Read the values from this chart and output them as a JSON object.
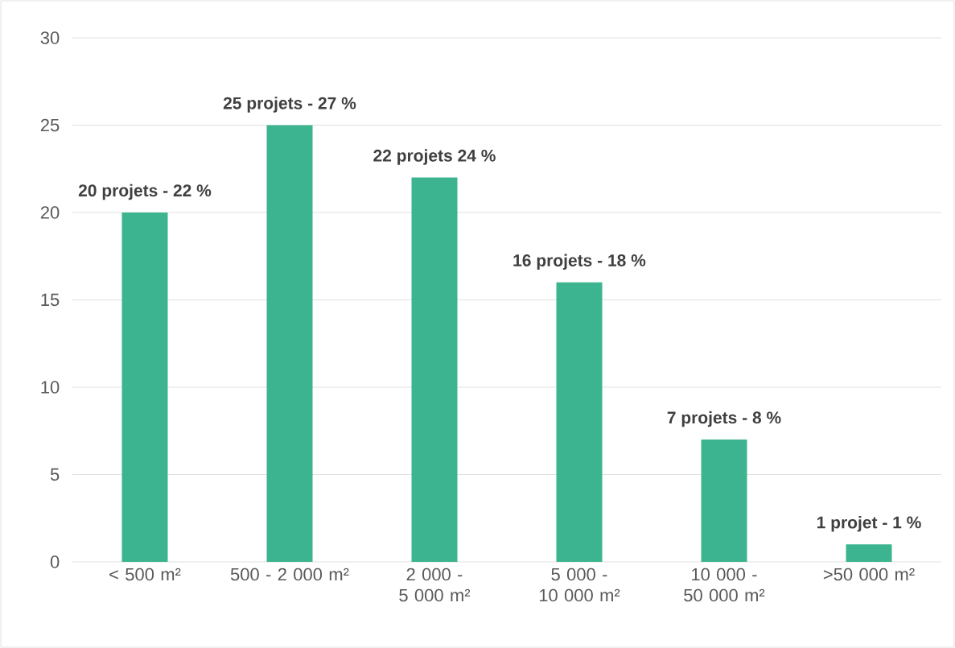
{
  "chart_data": {
    "type": "bar",
    "categories": [
      "< 500 m²",
      "500 - 2 000 m²",
      "2 000 - 5 000 m²",
      "5 000 - 10 000 m²",
      "10 000 - 50 000 m²",
      ">50 000 m²"
    ],
    "values": [
      20,
      25,
      22,
      16,
      7,
      1
    ],
    "value_labels": [
      "20 projets - 22 %",
      "25 projets - 27 %",
      "22 projets 24 %",
      "16 projets - 18 %",
      "7 projets - 8 %",
      "1 projet - 1 %"
    ],
    "color": "#3cb48f",
    "ylim": [
      0,
      30
    ],
    "yticks": [
      0,
      5,
      10,
      15,
      20,
      25,
      30
    ],
    "grid": "y"
  }
}
